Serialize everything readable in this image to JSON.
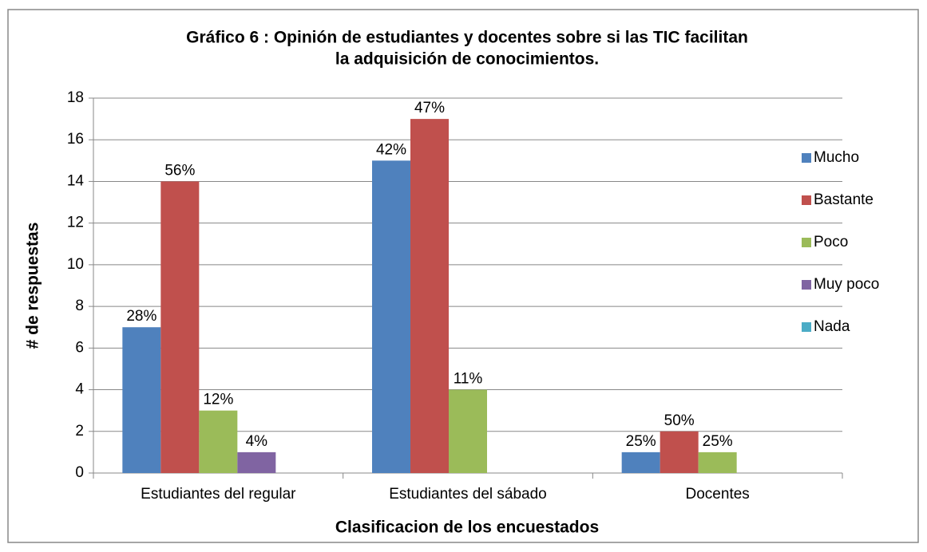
{
  "chart_data": {
    "type": "bar",
    "title": [
      "Gráfico 6 : Opinión de estudiantes y docentes sobre si las TIC facilitan",
      "la adquisición de conocimientos."
    ],
    "x_label": "Clasificacion de los encuestados",
    "y_label": "# de respuestas",
    "categories": [
      "Estudiantes del regular",
      "Estudiantes del sábado",
      "Docentes"
    ],
    "series": [
      {
        "name": "Mucho",
        "color": "#4f81bd",
        "values": [
          7,
          15,
          1
        ],
        "labels": [
          "28%",
          "42%",
          "25%"
        ]
      },
      {
        "name": "Bastante",
        "color": "#c0504d",
        "values": [
          14,
          17,
          2
        ],
        "labels": [
          "56%",
          "47%",
          "50%"
        ]
      },
      {
        "name": "Poco",
        "color": "#9bbb59",
        "values": [
          3,
          4,
          1
        ],
        "labels": [
          "12%",
          "11%",
          "25%"
        ]
      },
      {
        "name": "Muy poco",
        "color": "#8064a2",
        "values": [
          1,
          0,
          0
        ],
        "labels": [
          "4%",
          null,
          null
        ]
      },
      {
        "name": "Nada",
        "color": "#4bacc6",
        "values": [
          0,
          0,
          0
        ],
        "labels": [
          null,
          null,
          null
        ]
      }
    ],
    "ylim": [
      0,
      18
    ],
    "yticks": [
      0,
      2,
      4,
      6,
      8,
      10,
      12,
      14,
      16,
      18
    ],
    "grid": true,
    "legend": "right"
  }
}
